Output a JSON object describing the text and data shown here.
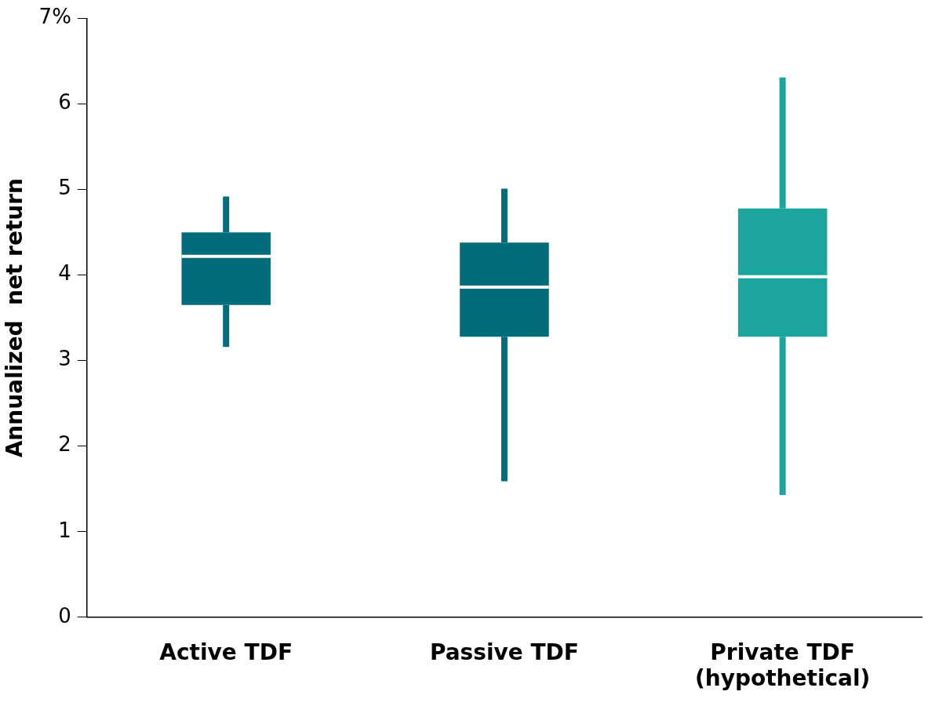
{
  "chart_data": {
    "type": "box",
    "ylabel": "Annualized  net return",
    "categories": [
      "Active TDF",
      "Passive TDF",
      "Private TDF (hypothetical)"
    ],
    "colors": [
      "#036c7a",
      "#036c7a",
      "#1ba59e"
    ],
    "boxes": [
      {
        "low": 3.16,
        "q1": 3.65,
        "median": 4.22,
        "q3": 4.5,
        "high": 4.92
      },
      {
        "low": 1.59,
        "q1": 3.28,
        "median": 3.86,
        "q3": 4.38,
        "high": 5.01
      },
      {
        "low": 1.43,
        "q1": 3.28,
        "median": 3.98,
        "q3": 4.78,
        "high": 6.31
      }
    ],
    "ylim": [
      0,
      7
    ],
    "yticks": [
      0,
      1,
      2,
      3,
      4,
      5,
      6,
      {
        "value": 7,
        "label": "7%"
      }
    ],
    "grid": false,
    "legend": false
  }
}
